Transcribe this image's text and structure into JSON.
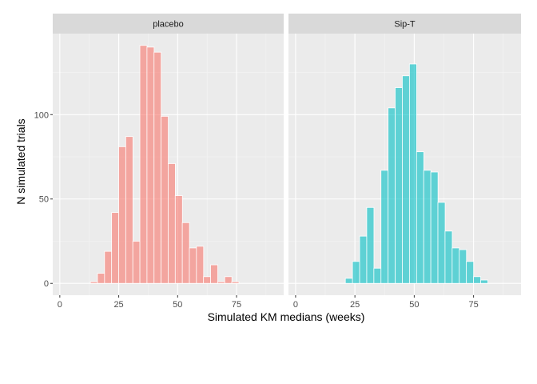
{
  "chart_data": {
    "type": "bar",
    "xlabel": "Simulated KM medians (weeks)",
    "ylabel": "N simulated trials",
    "xlim": [
      -3,
      95
    ],
    "ylim": [
      -7,
      148
    ],
    "x_ticks": [
      0,
      25,
      50,
      75
    ],
    "y_ticks": [
      0,
      50,
      100
    ],
    "bin_width": 3.05,
    "grid": true,
    "legend": "none",
    "panels": [
      {
        "name": "placebo",
        "color": "#F8766D",
        "bins": [
          {
            "x": 1.0,
            "count": 0
          },
          {
            "x": 4.0,
            "count": 0
          },
          {
            "x": 7.0,
            "count": 0
          },
          {
            "x": 10.0,
            "count": 0
          },
          {
            "x": 14.5,
            "count": 1
          },
          {
            "x": 17.5,
            "count": 6
          },
          {
            "x": 20.5,
            "count": 19
          },
          {
            "x": 23.5,
            "count": 42
          },
          {
            "x": 26.5,
            "count": 81
          },
          {
            "x": 29.5,
            "count": 87
          },
          {
            "x": 32.5,
            "count": 25
          },
          {
            "x": 35.5,
            "count": 141
          },
          {
            "x": 38.5,
            "count": 140
          },
          {
            "x": 41.5,
            "count": 137
          },
          {
            "x": 44.5,
            "count": 99
          },
          {
            "x": 47.5,
            "count": 71
          },
          {
            "x": 50.5,
            "count": 52
          },
          {
            "x": 53.5,
            "count": 36
          },
          {
            "x": 56.5,
            "count": 21
          },
          {
            "x": 59.5,
            "count": 22
          },
          {
            "x": 62.5,
            "count": 4
          },
          {
            "x": 65.5,
            "count": 11
          },
          {
            "x": 68.5,
            "count": 1
          },
          {
            "x": 71.5,
            "count": 4
          },
          {
            "x": 74.5,
            "count": 1
          }
        ]
      },
      {
        "name": "Sip-T",
        "color": "#00BFC4",
        "bins": [
          {
            "x": 1.0,
            "count": 0
          },
          {
            "x": 4.0,
            "count": 0
          },
          {
            "x": 7.0,
            "count": 0
          },
          {
            "x": 10.0,
            "count": 0
          },
          {
            "x": 22.5,
            "count": 3
          },
          {
            "x": 25.5,
            "count": 13
          },
          {
            "x": 28.5,
            "count": 28
          },
          {
            "x": 31.5,
            "count": 45
          },
          {
            "x": 34.5,
            "count": 9
          },
          {
            "x": 37.5,
            "count": 67
          },
          {
            "x": 40.5,
            "count": 104
          },
          {
            "x": 43.5,
            "count": 116
          },
          {
            "x": 46.5,
            "count": 123
          },
          {
            "x": 49.5,
            "count": 130
          },
          {
            "x": 52.5,
            "count": 78
          },
          {
            "x": 55.5,
            "count": 67
          },
          {
            "x": 58.5,
            "count": 66
          },
          {
            "x": 61.5,
            "count": 48
          },
          {
            "x": 64.5,
            "count": 31
          },
          {
            "x": 67.5,
            "count": 21
          },
          {
            "x": 70.5,
            "count": 20
          },
          {
            "x": 73.5,
            "count": 13
          },
          {
            "x": 76.5,
            "count": 4
          },
          {
            "x": 79.5,
            "count": 2
          }
        ]
      }
    ]
  }
}
